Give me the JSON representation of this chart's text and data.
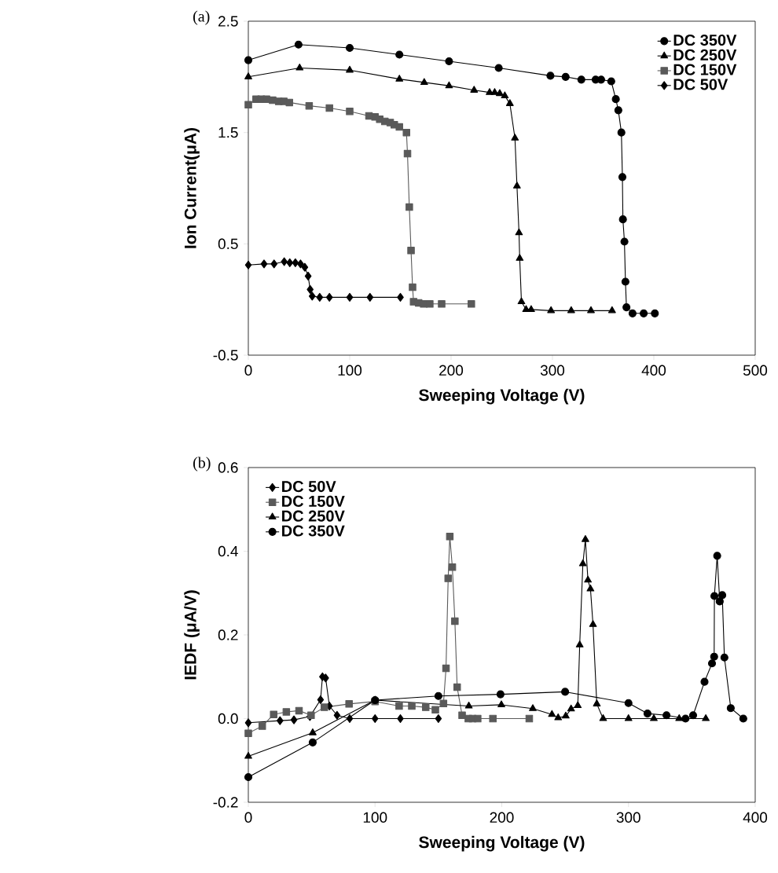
{
  "chart_data": [
    {
      "type": "line",
      "title": "(a)",
      "xlabel": "Sweeping Voltage (V)",
      "ylabel": "Ion Current(μA)",
      "xlim": [
        0,
        500
      ],
      "ylim": [
        -0.5,
        2.5
      ],
      "xticks": [
        0,
        100,
        200,
        300,
        400,
        500
      ],
      "yticks": [
        -0.5,
        0.5,
        1.5,
        2.5
      ],
      "legend": "top right",
      "grid": false,
      "series": [
        {
          "name": "DC 350V",
          "color": "#000000",
          "marker": "circle",
          "x": [
            0,
            49.5,
            100,
            149,
            198,
            247,
            298,
            313,
            328.5,
            342.6,
            348,
            358,
            362.5,
            365,
            368,
            369,
            369.5,
            371,
            372,
            373,
            379,
            390,
            401
          ],
          "values": [
            2.15,
            2.29,
            2.26,
            2.2,
            2.14,
            2.08,
            2.01,
            2.0,
            1.975,
            1.975,
            1.975,
            1.96,
            1.8,
            1.7,
            1.5,
            1.1,
            0.72,
            0.52,
            0.16,
            -0.07,
            -0.125,
            -0.125,
            -0.125
          ]
        },
        {
          "name": "DC 250V",
          "color": "#000000",
          "marker": "triangle",
          "x": [
            0,
            50.6,
            100,
            149,
            173.5,
            198,
            222.7,
            238,
            243,
            248,
            253,
            258,
            263,
            265,
            267,
            267.7,
            269.4,
            274,
            279,
            298.6,
            318.5,
            338,
            358.8
          ],
          "values": [
            2.0,
            2.08,
            2.06,
            1.98,
            1.95,
            1.92,
            1.88,
            1.86,
            1.86,
            1.85,
            1.83,
            1.76,
            1.45,
            1.02,
            0.6,
            0.37,
            -0.02,
            -0.09,
            -0.09,
            -0.1,
            -0.1,
            -0.1,
            -0.1
          ]
        },
        {
          "name": "DC 150V",
          "color": "#5a5a5a",
          "marker": "square",
          "x": [
            0,
            7.6,
            12.7,
            17.9,
            24,
            30,
            35,
            40.5,
            60,
            80,
            100,
            119,
            125,
            129.6,
            134.7,
            140,
            144,
            149,
            156,
            157,
            158.8,
            160.5,
            162,
            163,
            168,
            173,
            179,
            190.7,
            220
          ],
          "values": [
            1.75,
            1.8,
            1.8,
            1.8,
            1.79,
            1.78,
            1.78,
            1.77,
            1.74,
            1.72,
            1.69,
            1.65,
            1.64,
            1.62,
            1.6,
            1.59,
            1.57,
            1.55,
            1.5,
            1.31,
            0.83,
            0.44,
            0.11,
            -0.02,
            -0.03,
            -0.04,
            -0.04,
            -0.04,
            -0.04
          ]
        },
        {
          "name": "DC 50V",
          "color": "#000000",
          "marker": "diamond",
          "x": [
            0,
            15.5,
            25.4,
            35.4,
            40.9,
            46.4,
            51.5,
            55.7,
            59,
            61,
            63,
            70.4,
            80,
            100,
            120,
            150
          ],
          "values": [
            0.31,
            0.32,
            0.32,
            0.34,
            0.33,
            0.33,
            0.32,
            0.29,
            0.21,
            0.09,
            0.03,
            0.02,
            0.02,
            0.02,
            0.02,
            0.02
          ]
        }
      ]
    },
    {
      "type": "line",
      "title": "(b)",
      "xlabel": "Sweeping Voltage (V)",
      "ylabel": "IEDF (μA/V)",
      "xlim": [
        0,
        400
      ],
      "ylim": [
        -0.2,
        0.6
      ],
      "xticks": [
        0,
        100,
        200,
        300,
        400
      ],
      "yticks": [
        -0.2,
        {
          "value": 0,
          "label": "0.0"
        },
        0.2,
        0.4,
        0.6
      ],
      "legend": "top left",
      "grid": false,
      "series": [
        {
          "name": "DC 50V",
          "color": "#000000",
          "marker": "diamond",
          "x": [
            0,
            25,
            36,
            48.6,
            57,
            58.5,
            61,
            64,
            70,
            80,
            100,
            120,
            150
          ],
          "values": [
            -0.01,
            -0.005,
            -0.003,
            0.005,
            0.045,
            0.1,
            0.097,
            0.03,
            0.008,
            0.0,
            0.0,
            0.0,
            0.0
          ]
        },
        {
          "name": "DC 150V",
          "color": "#5a5a5a",
          "marker": "square",
          "x": [
            0,
            11,
            20,
            30,
            40,
            49.5,
            60,
            79.5,
            100,
            119,
            129,
            140,
            147.6,
            154,
            156,
            157.7,
            159,
            161,
            163,
            164.8,
            168.7,
            173.6,
            177,
            181,
            193,
            221.7
          ],
          "values": [
            -0.035,
            -0.018,
            0.01,
            0.016,
            0.019,
            0.008,
            0.027,
            0.035,
            0.041,
            0.03,
            0.03,
            0.027,
            0.021,
            0.036,
            0.12,
            0.335,
            0.435,
            0.362,
            0.233,
            0.075,
            0.008,
            0.0,
            0.0,
            0.0,
            0.0,
            0.0
          ]
        },
        {
          "name": "DC 250V",
          "color": "#000000",
          "marker": "triangle",
          "x": [
            0,
            50.8,
            100,
            174,
            199.7,
            224.5,
            239.6,
            244.5,
            250.5,
            254.7,
            260,
            261.5,
            264,
            266,
            268,
            270,
            272,
            275,
            280,
            300,
            320,
            340,
            361
          ],
          "values": [
            -0.09,
            -0.034,
            0.044,
            0.03,
            0.033,
            0.024,
            0.01,
            0.002,
            0.006,
            0.023,
            0.031,
            0.176,
            0.37,
            0.428,
            0.331,
            0.31,
            0.225,
            0.035,
            0.0,
            0.0,
            0.0,
            0.0,
            0.0
          ]
        },
        {
          "name": "DC 350V",
          "color": "#000000",
          "marker": "circle",
          "x": [
            0,
            50.8,
            100,
            150,
            199,
            250,
            300,
            315,
            330,
            345,
            351,
            360,
            365.9,
            367.6,
            367.8,
            370,
            372,
            374,
            375.7,
            380.7,
            390.6
          ],
          "values": [
            -0.14,
            -0.057,
            0.044,
            0.054,
            0.058,
            0.064,
            0.037,
            0.012,
            0.008,
            0.0,
            0.008,
            0.088,
            0.132,
            0.148,
            0.293,
            0.389,
            0.28,
            0.295,
            0.146,
            0.025,
            0.0
          ]
        }
      ]
    }
  ]
}
